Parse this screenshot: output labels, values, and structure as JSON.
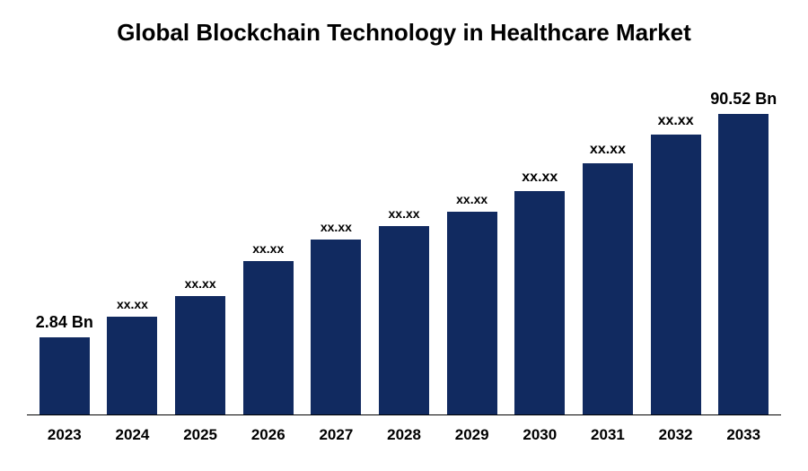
{
  "chart": {
    "type": "bar",
    "title": "Global Blockchain Technology in Healthcare Market",
    "title_fontsize": 26,
    "title_color": "#000000",
    "title_fontweight": 700,
    "background_color": "#ffffff",
    "bar_color": "#112a60",
    "axis_line_color": "#000000",
    "x_tick_fontsize": 17,
    "x_tick_fontweight": 700,
    "x_tick_color": "#000000",
    "bar_width_ratio": 0.74,
    "ylim": [
      0,
      100
    ],
    "categories": [
      "2023",
      "2024",
      "2025",
      "2026",
      "2027",
      "2028",
      "2029",
      "2030",
      "2031",
      "2032",
      "2033"
    ],
    "values": [
      22,
      28,
      34,
      44,
      50,
      54,
      58,
      64,
      72,
      80,
      86
    ],
    "data_labels": [
      "2.84 Bn",
      "xx.xx",
      "xx.xx",
      "xx.xx",
      "xx.xx",
      "xx.xx",
      "xx.xx",
      "xx.xx",
      "xx.xx",
      "xx.xx",
      "90.52 Bn"
    ],
    "label_fontsizes": [
      18,
      14,
      14,
      14,
      14,
      14,
      14,
      16,
      16,
      16,
      18
    ],
    "label_fontweight": 700,
    "label_color": "#000000"
  }
}
